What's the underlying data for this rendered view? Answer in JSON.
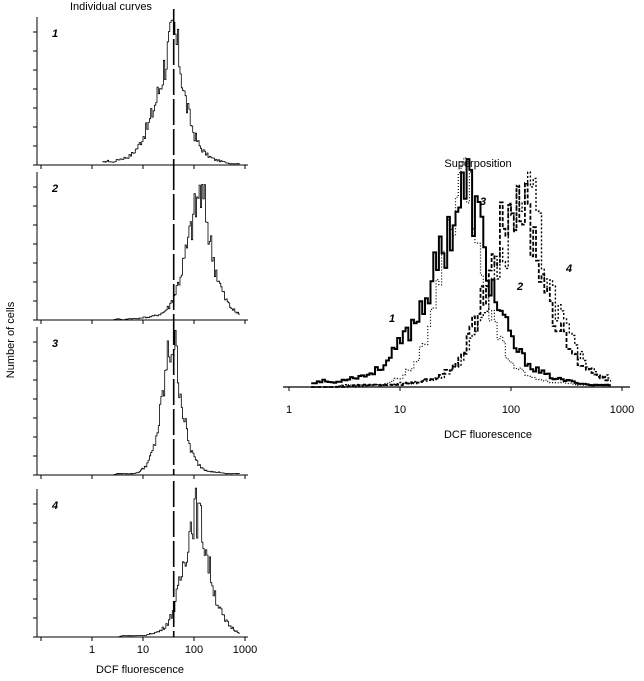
{
  "chart_data": [
    {
      "type": "line",
      "title": "Individual curves",
      "xlabel": "DCF fluorescence",
      "ylabel": "Number of cells",
      "xscale": "log",
      "xlim": [
        0.1,
        1000
      ],
      "xticks": [
        "1",
        "10",
        "100",
        "1000"
      ],
      "grid": false,
      "marker_line_x": 40,
      "panels": [
        "1",
        "2",
        "3",
        "4"
      ]
    },
    {
      "type": "line",
      "title": "Superposition",
      "xlabel": "DCF fluorescence",
      "xscale": "log",
      "xlim": [
        1,
        1000
      ],
      "xticks": [
        "1",
        "10",
        "100",
        "1000"
      ],
      "grid": false,
      "curve_labels": [
        "1",
        "2",
        "3",
        "4"
      ]
    }
  ],
  "histogram": {
    "log10_x": [
      0.2,
      0.3,
      0.4,
      0.5,
      0.6,
      0.7,
      0.8,
      0.9,
      1.0,
      1.1,
      1.2,
      1.3,
      1.4,
      1.5,
      1.6,
      1.7,
      1.8,
      1.9,
      2.0,
      2.1,
      2.2,
      2.3,
      2.4,
      2.5,
      2.6,
      2.7,
      2.8,
      2.9
    ],
    "series": [
      {
        "name": "1",
        "values": [
          2,
          3,
          2,
          4,
          5,
          6,
          9,
          14,
          22,
          30,
          42,
          55,
          72,
          88,
          98,
          80,
          52,
          35,
          22,
          14,
          9,
          6,
          4,
          3,
          2,
          1,
          1,
          1
        ]
      },
      {
        "name": "2",
        "values": [
          0,
          0,
          0,
          1,
          0,
          1,
          1,
          1,
          2,
          2,
          3,
          4,
          6,
          10,
          18,
          30,
          45,
          62,
          80,
          95,
          85,
          60,
          40,
          26,
          16,
          10,
          6,
          4
        ]
      },
      {
        "name": "3",
        "values": [
          0,
          0,
          0,
          1,
          1,
          1,
          1,
          2,
          5,
          10,
          20,
          38,
          65,
          92,
          100,
          70,
          40,
          22,
          12,
          7,
          4,
          3,
          2,
          2,
          1,
          1,
          1,
          1
        ]
      },
      {
        "name": "4",
        "values": [
          0,
          0,
          0,
          0,
          1,
          1,
          1,
          1,
          1,
          2,
          3,
          4,
          7,
          12,
          22,
          38,
          58,
          78,
          95,
          88,
          70,
          50,
          32,
          20,
          12,
          8,
          5,
          3
        ]
      }
    ]
  }
}
